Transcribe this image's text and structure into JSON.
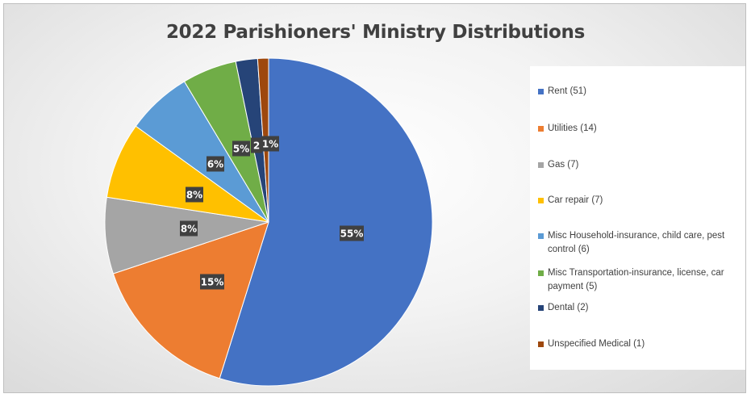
{
  "chart_data": {
    "type": "pie",
    "title": "2022 Parishioners' Ministry Distributions",
    "slices": [
      {
        "label": "Rent (51)",
        "value": 51,
        "percent_label": "55%",
        "color": "#4472C4"
      },
      {
        "label": "Utilities (14)",
        "value": 14,
        "percent_label": "15%",
        "color": "#ED7D31"
      },
      {
        "label": "Gas (7)",
        "value": 7,
        "percent_label": "8%",
        "color": "#A5A5A5"
      },
      {
        "label": "Car repair (7)",
        "value": 7,
        "percent_label": "8%",
        "color": "#FFC000"
      },
      {
        "label": "Misc Household-insurance, child care, pest control (6)",
        "value": 6,
        "percent_label": "6%",
        "color": "#5B9BD5"
      },
      {
        "label": "Misc Transportation-insurance, license, car payment (5)",
        "value": 5,
        "percent_label": "5%",
        "color": "#70AD47"
      },
      {
        "label": "Dental (2)",
        "value": 2,
        "percent_label": "2",
        "color": "#264478"
      },
      {
        "label": "Unspecified Medical (1)",
        "value": 1,
        "percent_label": "1%",
        "color": "#9E480E"
      }
    ],
    "legend_position": "right"
  }
}
